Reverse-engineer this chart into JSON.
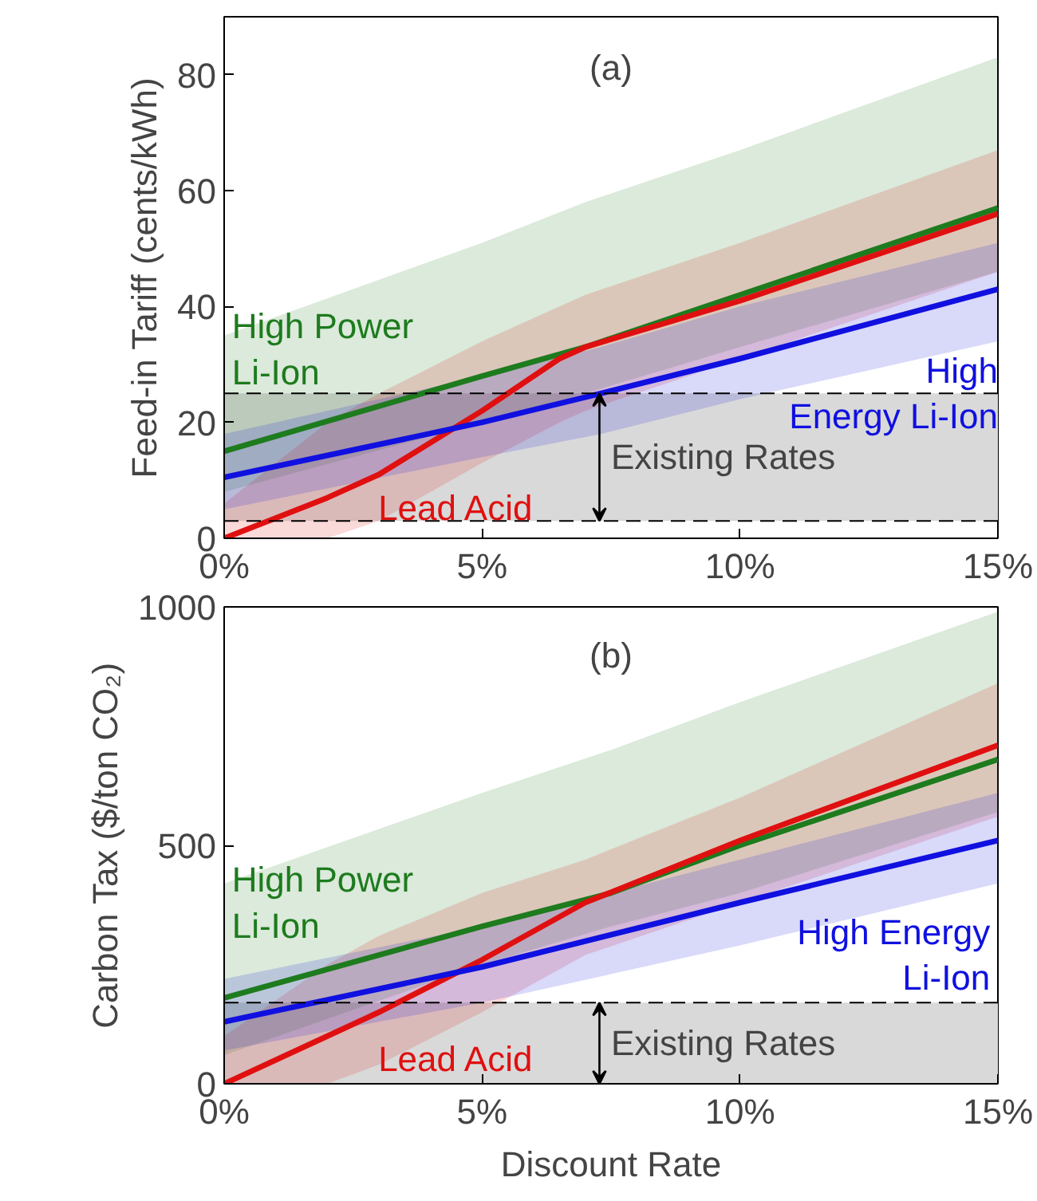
{
  "chart_data": [
    {
      "type": "line",
      "annotations": [
        "(a)"
      ],
      "ylabel": "Feed-in Tariff (cents/kWh)",
      "xlim": [
        0,
        15
      ],
      "ylim": [
        0,
        90
      ],
      "xticks": [
        {
          "value": 0,
          "label": "0%"
        },
        {
          "value": 5,
          "label": "5%"
        },
        {
          "value": 10,
          "label": "10%"
        },
        {
          "value": 15,
          "label": "15%"
        }
      ],
      "yticks": [
        0,
        20,
        40,
        60,
        80
      ],
      "grid": false,
      "bands": [
        {
          "axis": "y",
          "from": 3,
          "to": 25,
          "label": "Existing Rates",
          "color": "#d9d9d9"
        }
      ],
      "ref_lines": [
        {
          "axis": "y",
          "value": 3,
          "line_style": "dashed"
        },
        {
          "axis": "y",
          "value": 25,
          "line_style": "dashed"
        }
      ],
      "series": [
        {
          "name": "High Power\nLi-Ion",
          "color": "#1e7b1e",
          "x": [
            0,
            5,
            7,
            10,
            15
          ],
          "values": [
            15,
            28,
            33,
            42,
            57
          ],
          "lower": [
            8,
            20,
            25,
            33,
            46
          ],
          "upper": [
            35,
            51,
            58,
            67,
            83
          ]
        },
        {
          "name": "Lead Acid",
          "color": "#e01010",
          "x": [
            0,
            2,
            3,
            5,
            6.5,
            7,
            10,
            15
          ],
          "values": [
            0,
            7,
            11,
            22,
            31,
            33,
            41,
            56
          ],
          "lower": [
            0,
            0,
            3,
            13,
            20,
            22,
            31,
            46
          ],
          "upper": [
            6,
            20,
            25,
            34,
            40,
            42,
            51,
            67
          ]
        },
        {
          "name": "High\nEnergy Li-Ion",
          "color": "#1010e0",
          "x": [
            0,
            5,
            7.3,
            10,
            15
          ],
          "values": [
            10.5,
            20,
            25,
            31,
            43
          ],
          "lower": [
            5,
            14,
            18,
            24,
            34
          ],
          "upper": [
            18,
            28,
            33,
            40,
            51
          ]
        }
      ]
    },
    {
      "type": "line",
      "annotations": [
        "(b)"
      ],
      "xlabel": "Discount Rate",
      "ylabel": "Carbon Tax ($/ton CO₂)",
      "xlim": [
        0,
        15
      ],
      "ylim": [
        0,
        1000
      ],
      "xticks": [
        {
          "value": 0,
          "label": "0%"
        },
        {
          "value": 5,
          "label": "5%"
        },
        {
          "value": 10,
          "label": "10%"
        },
        {
          "value": 15,
          "label": "15%"
        }
      ],
      "yticks": [
        0,
        500,
        1000
      ],
      "grid": false,
      "bands": [
        {
          "axis": "y",
          "from": 0,
          "to": 170,
          "label": "Existing Rates",
          "color": "#d9d9d9"
        }
      ],
      "ref_lines": [
        {
          "axis": "y",
          "value": 170,
          "line_style": "dashed"
        }
      ],
      "series": [
        {
          "name": "High Power\nLi-Ion",
          "color": "#1e7b1e",
          "x": [
            0,
            5,
            7.5,
            10,
            15
          ],
          "values": [
            180,
            330,
            400,
            500,
            680
          ],
          "lower": [
            60,
            250,
            330,
            400,
            570
          ],
          "upper": [
            420,
            610,
            700,
            800,
            990
          ]
        },
        {
          "name": "Lead Acid",
          "color": "#e01010",
          "x": [
            0,
            2,
            3,
            5,
            7,
            10,
            15
          ],
          "values": [
            0,
            100,
            150,
            260,
            380,
            510,
            710
          ],
          "lower": [
            0,
            0,
            40,
            150,
            270,
            380,
            560
          ],
          "upper": [
            100,
            250,
            310,
            400,
            470,
            600,
            840
          ]
        },
        {
          "name": "High Energy\nLi-Ion",
          "color": "#1010e0",
          "x": [
            0,
            5,
            10,
            15
          ],
          "values": [
            130,
            245,
            380,
            510
          ],
          "lower": [
            70,
            170,
            290,
            420
          ],
          "upper": [
            220,
            330,
            470,
            610
          ]
        }
      ]
    }
  ]
}
